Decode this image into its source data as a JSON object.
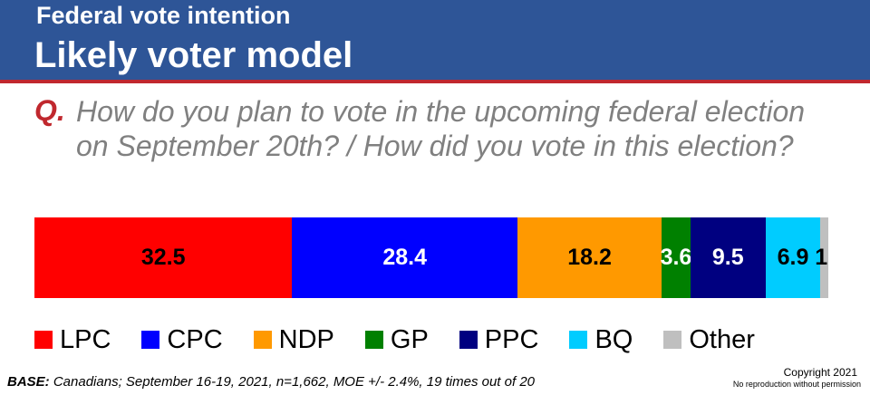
{
  "header": {
    "title_line1": "Federal vote intention",
    "title_line2": "Likely voter model"
  },
  "question": {
    "label": "Q.",
    "text": "How do you plan to vote in the upcoming federal election on September 20th? / How did you vote in this election?"
  },
  "chart_data": {
    "type": "bar",
    "orientation": "horizontal-stacked",
    "categories": [
      "LPC",
      "CPC",
      "NDP",
      "GP",
      "PPC",
      "BQ",
      "Other"
    ],
    "values": [
      32.5,
      28.4,
      18.2,
      3.6,
      9.5,
      6.9,
      1
    ],
    "labels": [
      "32.5",
      "28.4",
      "18.2",
      "3.6",
      "9.5",
      "6.9",
      "1"
    ],
    "colors": [
      "#ff0000",
      "#0000ff",
      "#ff9900",
      "#008000",
      "#000080",
      "#00ccff",
      "#bfbfbf"
    ],
    "label_colors": [
      "#000000",
      "#ffffff",
      "#000000",
      "#ffffff",
      "#ffffff",
      "#000000",
      "#000000"
    ],
    "legend_position": "bottom"
  },
  "footer": {
    "base_label": "BASE:",
    "base_text": "Canadians; September 16-19, 2021, n=1,662, MOE +/- 2.4%, 19 times out of 20",
    "copyright": "Copyright 2021",
    "no_reproduction": "No reproduction without permission"
  }
}
